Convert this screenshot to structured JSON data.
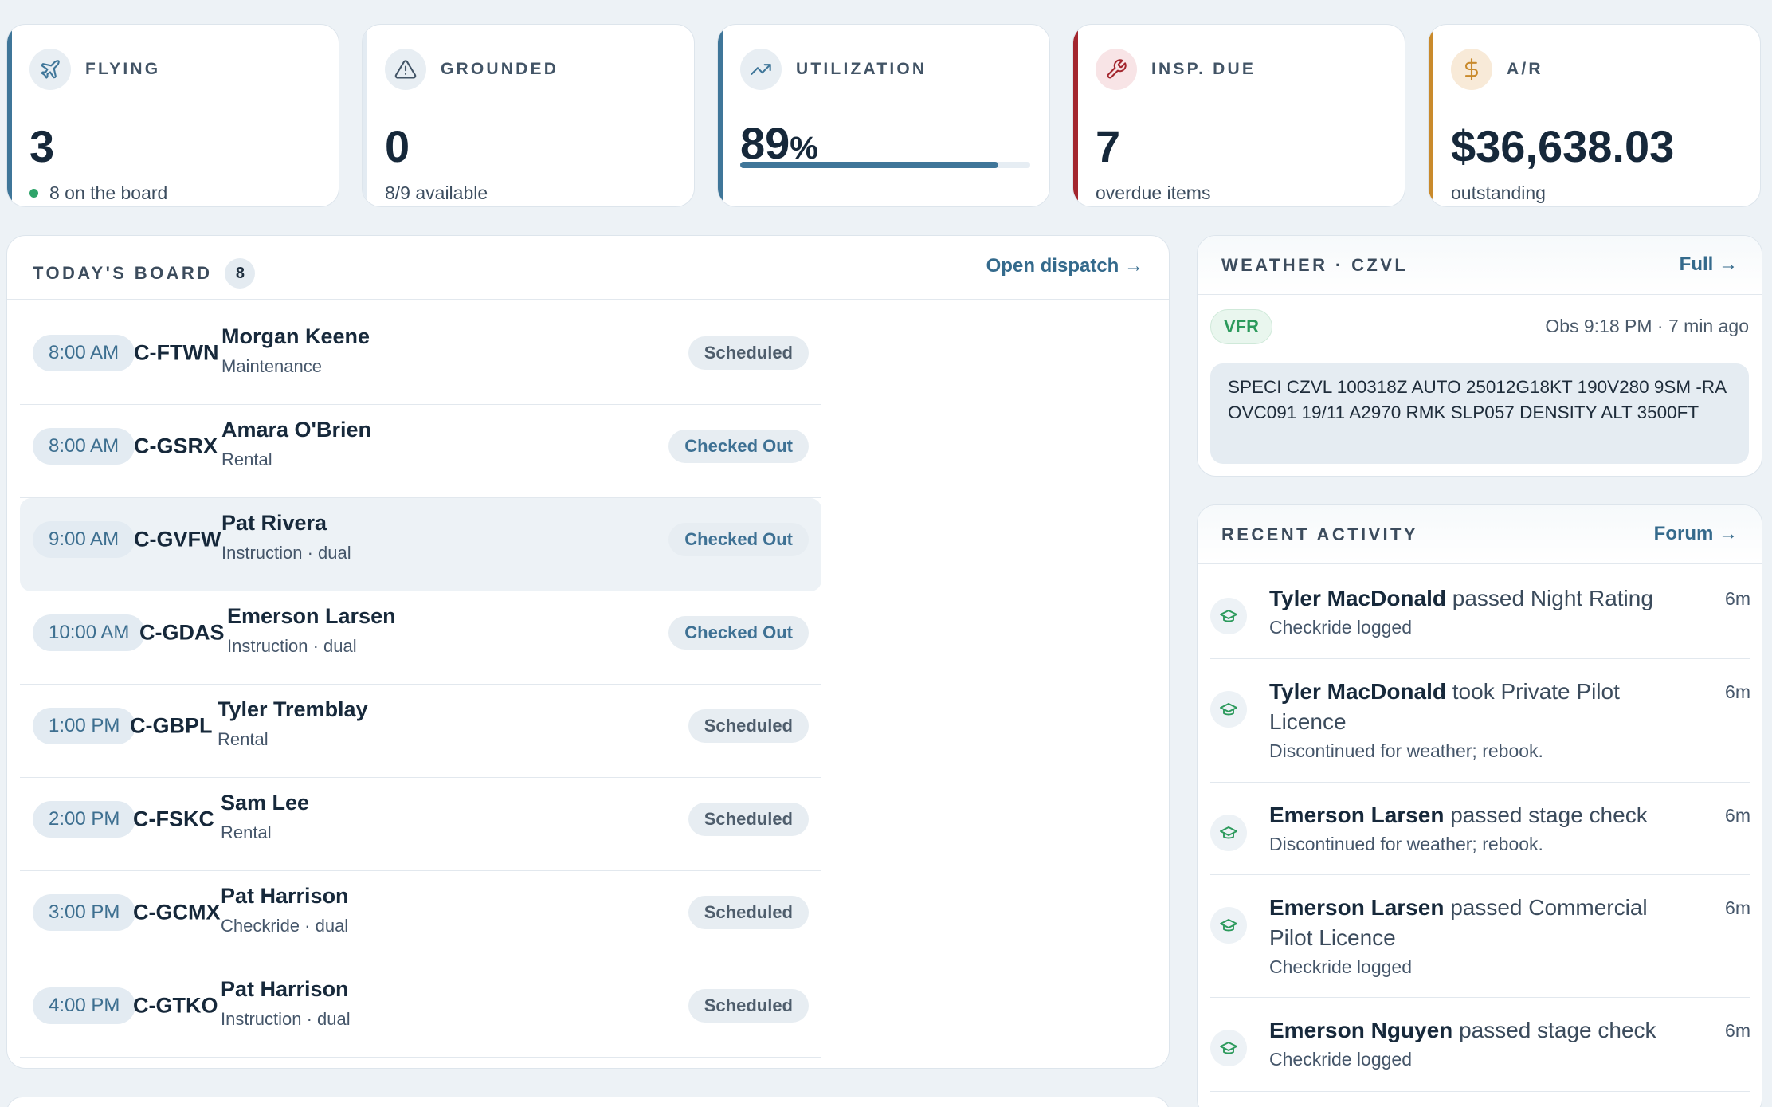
{
  "stats": {
    "flying": {
      "label": "FLYING",
      "value": "3",
      "sub": "8 on the board",
      "color": "#3f7699",
      "icon": "plane-icon"
    },
    "grounded": {
      "label": "GROUNDED",
      "value": "0",
      "sub": "8/9 available",
      "color": "#e3ebf2",
      "icon": "warning-triangle-icon"
    },
    "utilization": {
      "label": "UTILIZATION",
      "value": "89",
      "unit": "%",
      "progress_percent": 89,
      "color": "#3f7699",
      "icon": "trend-up-icon"
    },
    "inspections": {
      "label": "INSP. DUE",
      "value": "7",
      "sub": "overdue items",
      "color": "#a3262e",
      "icon": "wrench-icon"
    },
    "receivables": {
      "label": "A/R",
      "value": "$36,638.03",
      "sub": "outstanding",
      "color": "#c98a2c",
      "icon": "dollar-icon"
    }
  },
  "board": {
    "title": "TODAY'S BOARD",
    "count": "8",
    "link": "Open dispatch →",
    "rows": [
      {
        "time": "8:00 AM",
        "tail": "C-FTWN",
        "pilot": "Morgan Keene",
        "kind": "Maintenance",
        "status": "Scheduled",
        "checked_out": false
      },
      {
        "time": "8:00 AM",
        "tail": "C-GSRX",
        "pilot": "Amara O'Brien",
        "kind": "Rental",
        "status": "Checked Out",
        "checked_out": true
      },
      {
        "time": "9:00 AM",
        "tail": "C-GVFW",
        "pilot": "Pat Rivera",
        "kind": "Instruction · dual",
        "status": "Checked Out",
        "checked_out": true,
        "highlight": true
      },
      {
        "time": "10:00 AM",
        "tail": "C-GDAS",
        "pilot": "Emerson Larsen",
        "kind": "Instruction · dual",
        "status": "Checked Out",
        "checked_out": true
      },
      {
        "time": "1:00 PM",
        "tail": "C-GBPL",
        "pilot": "Tyler Tremblay",
        "kind": "Rental",
        "status": "Scheduled",
        "checked_out": false
      },
      {
        "time": "2:00 PM",
        "tail": "C-FSKC",
        "pilot": "Sam Lee",
        "kind": "Rental",
        "status": "Scheduled",
        "checked_out": false
      },
      {
        "time": "3:00 PM",
        "tail": "C-GCMX",
        "pilot": "Pat Harrison",
        "kind": "Checkride · dual",
        "status": "Scheduled",
        "checked_out": false
      },
      {
        "time": "4:00 PM",
        "tail": "C-GTKO",
        "pilot": "Pat Harrison",
        "kind": "Instruction · dual",
        "status": "Scheduled",
        "checked_out": false
      }
    ]
  },
  "weather": {
    "title": "WEATHER · CZVL",
    "link": "Full →",
    "category": "VFR",
    "observed": "Obs 9:18 PM · 7 min ago",
    "metar": "SPECI CZVL 100318Z AUTO 25012G18KT 190V280 9SM -RA OVC091 19/11 A2970 RMK SLP057 DENSITY ALT 3500FT"
  },
  "activity": {
    "title": "RECENT ACTIVITY",
    "link": "Forum →",
    "items": [
      {
        "name": "Tyler MacDonald",
        "action": "passed Night Rating",
        "note": "Checkride logged",
        "time": "6m"
      },
      {
        "name": "Tyler MacDonald",
        "action": "took Private Pilot Licence",
        "note": "Discontinued for weather; rebook.",
        "time": "6m"
      },
      {
        "name": "Emerson Larsen",
        "action": "passed stage check",
        "note": "Discontinued for weather; rebook.",
        "time": "6m"
      },
      {
        "name": "Emerson Larsen",
        "action": "passed Commercial Pilot Licence",
        "note": "Checkride logged",
        "time": "6m"
      },
      {
        "name": "Emerson Nguyen",
        "action": "passed stage check",
        "note": "Checkride logged",
        "time": "6m"
      }
    ]
  }
}
